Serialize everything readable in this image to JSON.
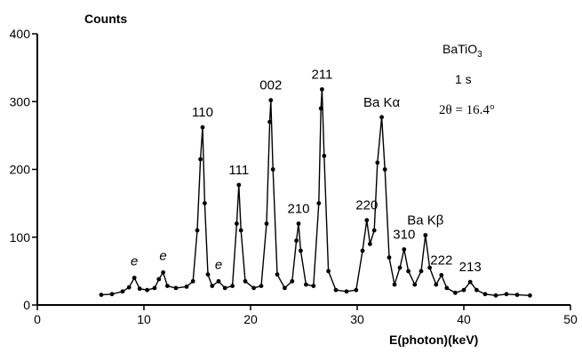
{
  "chart_data": {
    "type": "line",
    "title": "",
    "xlabel": "E(photon)(keV)",
    "ylabel": "Counts",
    "xlim": [
      0,
      50
    ],
    "ylim": [
      0,
      400
    ],
    "xticks": [
      0,
      10,
      20,
      30,
      40,
      50
    ],
    "yticks": [
      0,
      100,
      200,
      300,
      400
    ],
    "grid": false,
    "info": {
      "material_base": "BaTiO",
      "material_sub": "3",
      "time": "1 s",
      "angle": "2θ = 16.4°"
    },
    "peaks": [
      {
        "label": "110",
        "x": 15.5,
        "y": 262
      },
      {
        "label": "111",
        "x": 18.9,
        "y": 177
      },
      {
        "label": "002",
        "x": 21.9,
        "y": 302
      },
      {
        "label": "210",
        "x": 24.5,
        "y": 120
      },
      {
        "label": "211",
        "x": 26.7,
        "y": 318
      },
      {
        "label": "220",
        "x": 30.9,
        "y": 125
      },
      {
        "label": "Ba Kα",
        "x": 32.3,
        "y": 277
      },
      {
        "label": "310",
        "x": 34.4,
        "y": 82
      },
      {
        "label": "Ba Kβ",
        "x": 36.4,
        "y": 103
      },
      {
        "label": "222",
        "x": 37.9,
        "y": 44
      },
      {
        "label": "213",
        "x": 40.6,
        "y": 34
      }
    ],
    "escape_peaks": [
      {
        "label": "e",
        "x": 9.1,
        "y": 40
      },
      {
        "label": "e",
        "x": 11.8,
        "y": 48
      },
      {
        "label": "e",
        "x": 17.0,
        "y": 35
      }
    ],
    "series": [
      {
        "x": [
          6.0,
          7.0,
          8.0,
          8.6,
          9.1,
          9.6,
          10.3,
          11.0,
          11.4,
          11.8,
          12.2,
          13.0,
          14.0,
          14.6,
          15.0,
          15.3,
          15.5,
          15.7,
          16.0,
          16.4,
          17.0,
          17.6,
          18.3,
          18.7,
          18.9,
          19.1,
          19.5,
          20.3,
          21.0,
          21.5,
          21.8,
          21.9,
          22.1,
          22.5,
          23.2,
          23.9,
          24.3,
          24.5,
          24.7,
          25.2,
          25.9,
          26.4,
          26.6,
          26.7,
          26.9,
          27.3,
          28.0,
          29.0,
          29.9,
          30.5,
          30.9,
          31.2,
          31.6,
          31.9,
          32.3,
          32.6,
          33.0,
          33.5,
          34.0,
          34.4,
          34.8,
          35.4,
          36.0,
          36.4,
          36.8,
          37.4,
          37.9,
          38.4,
          39.2,
          40.0,
          40.6,
          41.2,
          42.0,
          43.0,
          44.0,
          45.0,
          46.2
        ],
        "y": [
          15,
          16,
          20,
          26,
          40,
          24,
          22,
          25,
          38,
          48,
          28,
          25,
          27,
          35,
          110,
          215,
          262,
          150,
          45,
          28,
          35,
          25,
          28,
          120,
          177,
          110,
          35,
          25,
          28,
          120,
          270,
          302,
          200,
          45,
          25,
          35,
          95,
          120,
          80,
          30,
          28,
          150,
          290,
          318,
          220,
          50,
          22,
          20,
          22,
          80,
          125,
          90,
          110,
          210,
          277,
          200,
          70,
          30,
          55,
          82,
          50,
          30,
          50,
          103,
          55,
          30,
          44,
          25,
          18,
          22,
          34,
          22,
          16,
          14,
          16,
          15,
          14
        ]
      }
    ]
  }
}
